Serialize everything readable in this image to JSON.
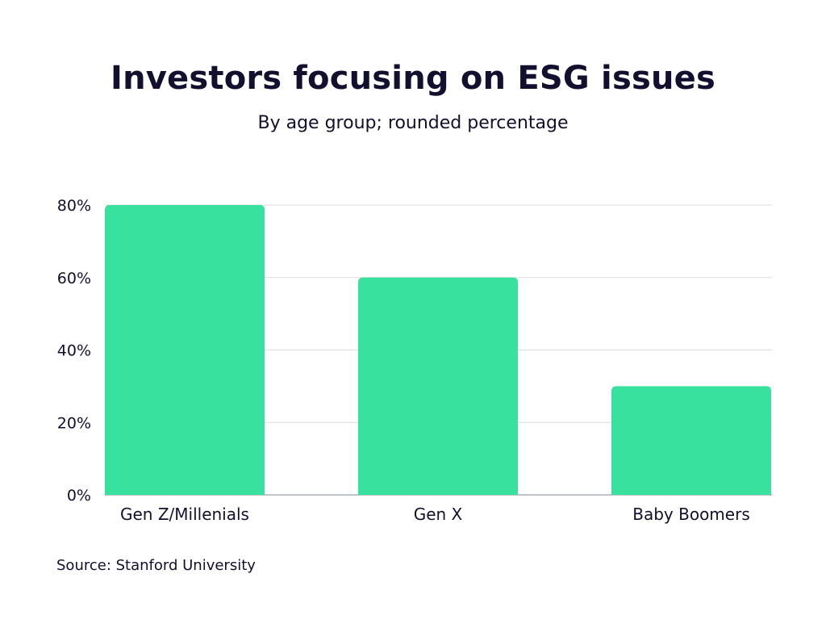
{
  "chart_data": {
    "type": "bar",
    "title": "Investors focusing on ESG issues",
    "subtitle": "By age group; rounded percentage",
    "categories": [
      "Gen Z/Millenials",
      "Gen X",
      "Baby Boomers"
    ],
    "values": [
      80,
      60,
      30
    ],
    "unit": "%",
    "ylim": [
      0,
      80
    ],
    "yticks": [
      0,
      20,
      40,
      60,
      80
    ],
    "ytick_labels": [
      "0%",
      "20%",
      "40%",
      "60%",
      "80%"
    ],
    "grid": true,
    "legend": "none",
    "bar_color": "#38e19e",
    "source": "Source: Stanford University"
  }
}
